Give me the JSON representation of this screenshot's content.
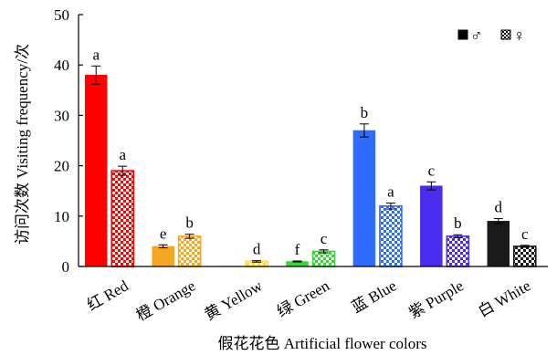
{
  "chart_data": {
    "type": "bar",
    "xlabel": "假花花色 Artificial flower colors",
    "ylabel": "访问次数 Visiting frequency/次",
    "ylim": [
      0,
      50
    ],
    "yticks": [
      "0",
      "10",
      "20",
      "30",
      "40",
      "50"
    ],
    "grid": false,
    "legend_position": "top-right",
    "categories": [
      "红 Red",
      "橙 Orange",
      "黄 Yellow",
      "绿 Green",
      "蓝 Blue",
      "紫 Purple",
      "白 White"
    ],
    "colors": [
      "#ff0000",
      "#f5a623",
      "#ffd84a",
      "#39d639",
      "#2f6bff",
      "#4a2bf0",
      "#1a1a1a"
    ],
    "series": [
      {
        "name": "♂",
        "pattern": "solid",
        "values": [
          38,
          4,
          0,
          1,
          27,
          16,
          9
        ],
        "errors": [
          1.8,
          0.3,
          0,
          0.1,
          1.3,
          0.8,
          0.5
        ],
        "letters": [
          "a",
          "e",
          "",
          "f",
          "b",
          "c",
          "d"
        ]
      },
      {
        "name": "♀",
        "pattern": "checker",
        "values": [
          19,
          6,
          1,
          3,
          12,
          6,
          4
        ],
        "errors": [
          0.9,
          0.4,
          0.15,
          0.3,
          0.6,
          0.3,
          0.2
        ],
        "letters": [
          "a",
          "b",
          "d",
          "c",
          "a",
          "b",
          "c"
        ]
      }
    ]
  }
}
